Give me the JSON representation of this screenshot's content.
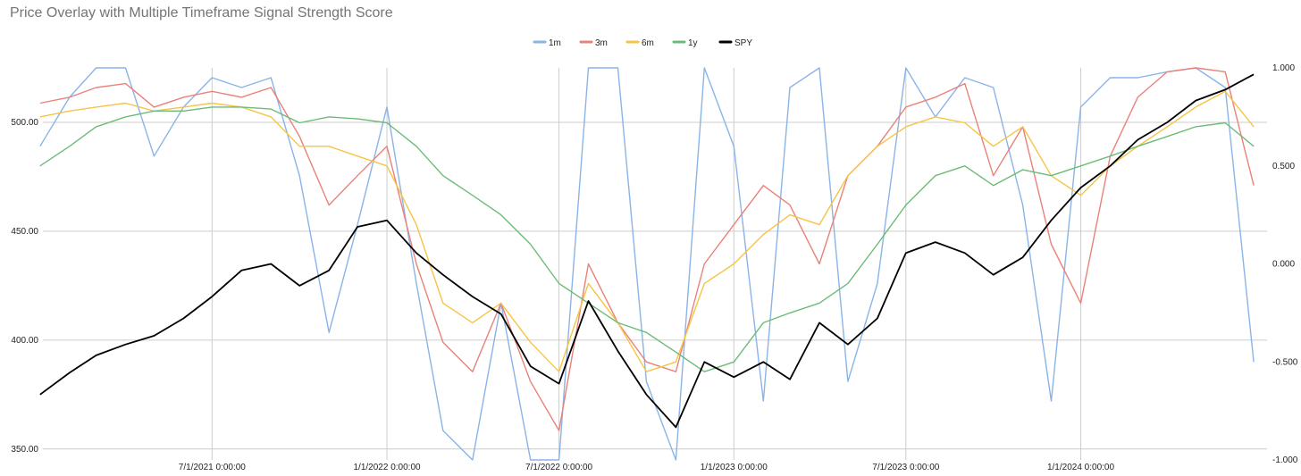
{
  "chart_data": {
    "type": "line",
    "title": "Price Overlay with Multiple Timeframe Signal Strength Score",
    "xlabel": "",
    "ylabel": "",
    "grid": true,
    "legend_position": "top-center",
    "x_ticks": [
      "7/1/2021 0:00:00",
      "1/1/2022 0:00:00",
      "7/1/2022 0:00:00",
      "1/1/2023 0:00:00",
      "7/1/2023 0:00:00",
      "1/1/2024 0:00:00"
    ],
    "x_range": [
      "2021-01-04",
      "2024-07-15"
    ],
    "ylim_left": [
      345,
      525
    ],
    "ylim_right": [
      -1.0,
      1.0
    ],
    "y_ticks_left": [
      "350.00",
      "400.00",
      "450.00",
      "500.00"
    ],
    "y_ticks_right": [
      "-1.000",
      "-0.500",
      "0.000",
      "0.500",
      "1.000"
    ],
    "x": [
      "2021-01-01",
      "2021-02-01",
      "2021-03-01",
      "2021-04-01",
      "2021-05-01",
      "2021-06-01",
      "2021-07-01",
      "2021-08-01",
      "2021-09-01",
      "2021-10-01",
      "2021-11-01",
      "2021-12-01",
      "2022-01-01",
      "2022-02-01",
      "2022-03-01",
      "2022-04-01",
      "2022-05-01",
      "2022-06-01",
      "2022-07-01",
      "2022-08-01",
      "2022-09-01",
      "2022-10-01",
      "2022-11-01",
      "2022-12-01",
      "2023-01-01",
      "2023-02-01",
      "2023-03-01",
      "2023-04-01",
      "2023-05-01",
      "2023-06-01",
      "2023-07-01",
      "2023-08-01",
      "2023-09-01",
      "2023-10-01",
      "2023-11-01",
      "2023-12-01",
      "2024-01-01",
      "2024-02-01",
      "2024-03-01",
      "2024-04-01",
      "2024-05-01",
      "2024-06-01",
      "2024-07-01"
    ],
    "series": [
      {
        "name": "1m",
        "color": "#8ab4e8",
        "axis": "right",
        "values": [
          0.6,
          0.85,
          1.0,
          1.0,
          0.55,
          0.8,
          0.95,
          0.9,
          0.95,
          0.45,
          -0.35,
          0.2,
          0.8,
          -0.1,
          -0.85,
          -1.0,
          -0.2,
          -1.0,
          -1.0,
          1.0,
          1.0,
          -0.6,
          -1.0,
          1.0,
          0.6,
          -0.7,
          0.9,
          1.0,
          -0.6,
          -0.1,
          1.0,
          0.75,
          0.95,
          0.9,
          0.3,
          -0.7,
          0.8,
          0.95,
          0.95,
          0.98,
          1.0,
          0.9,
          -0.5
        ]
      },
      {
        "name": "3m",
        "color": "#e8827a",
        "axis": "right",
        "values": [
          0.82,
          0.85,
          0.9,
          0.92,
          0.8,
          0.85,
          0.88,
          0.85,
          0.9,
          0.65,
          0.3,
          0.45,
          0.6,
          0.0,
          -0.4,
          -0.55,
          -0.2,
          -0.6,
          -0.85,
          0.0,
          -0.3,
          -0.5,
          -0.55,
          0.0,
          0.2,
          0.4,
          0.3,
          0.0,
          0.45,
          0.6,
          0.8,
          0.85,
          0.92,
          0.45,
          0.7,
          0.1,
          -0.2,
          0.55,
          0.85,
          0.98,
          1.0,
          0.98,
          0.4
        ]
      },
      {
        "name": "6m",
        "color": "#f6c445",
        "axis": "right",
        "values": [
          0.75,
          0.78,
          0.8,
          0.82,
          0.78,
          0.8,
          0.82,
          0.8,
          0.75,
          0.6,
          0.6,
          0.55,
          0.5,
          0.2,
          -0.2,
          -0.3,
          -0.2,
          -0.4,
          -0.55,
          -0.1,
          -0.3,
          -0.55,
          -0.5,
          -0.1,
          0.0,
          0.15,
          0.25,
          0.2,
          0.45,
          0.6,
          0.7,
          0.75,
          0.72,
          0.6,
          0.7,
          0.45,
          0.35,
          0.5,
          0.6,
          0.7,
          0.8,
          0.88,
          0.7
        ]
      },
      {
        "name": "1y",
        "color": "#6dbb78",
        "axis": "right",
        "values": [
          0.5,
          0.6,
          0.7,
          0.75,
          0.78,
          0.78,
          0.8,
          0.8,
          0.79,
          0.72,
          0.75,
          0.74,
          0.72,
          0.6,
          0.45,
          0.35,
          0.25,
          0.1,
          -0.1,
          -0.2,
          -0.3,
          -0.35,
          -0.45,
          -0.55,
          -0.5,
          -0.3,
          -0.25,
          -0.2,
          -0.1,
          0.1,
          0.3,
          0.45,
          0.5,
          0.4,
          0.48,
          0.45,
          0.5,
          0.55,
          0.6,
          0.65,
          0.7,
          0.72,
          0.6
        ]
      },
      {
        "name": "SPY",
        "color": "#000000",
        "axis": "left",
        "values": [
          375,
          385,
          393,
          398,
          402,
          410,
          420,
          432,
          435,
          425,
          432,
          452,
          455,
          440,
          430,
          420,
          412,
          388,
          380,
          418,
          395,
          375,
          360,
          390,
          383,
          390,
          382,
          408,
          398,
          410,
          440,
          445,
          440,
          430,
          438,
          455,
          470,
          480,
          492,
          500,
          510,
          515,
          522
        ]
      }
    ]
  }
}
